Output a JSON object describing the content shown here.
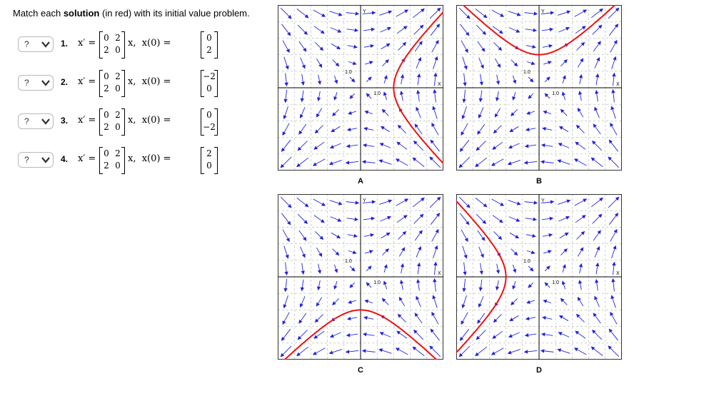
{
  "instruction": {
    "prefix": "Match each ",
    "bold": "solution",
    "suffix": " (in red) with its initial value problem."
  },
  "problems": [
    {
      "select_value": "?",
      "number": "1.",
      "lhs": "x′ =",
      "A": [
        "0",
        "2",
        "2",
        "0"
      ],
      "rhs": "x,  x(0) =",
      "x0": [
        "0",
        "2"
      ]
    },
    {
      "select_value": "?",
      "number": "2.",
      "lhs": "x′ =",
      "A": [
        "0",
        "2",
        "2",
        "0"
      ],
      "rhs": "x,  x(0) =",
      "x0": [
        "−2",
        "0"
      ]
    },
    {
      "select_value": "?",
      "number": "3.",
      "lhs": "x′ =",
      "A": [
        "0",
        "2",
        "2",
        "0"
      ],
      "rhs": "x,  x(0) =",
      "x0": [
        "0",
        "−2"
      ]
    },
    {
      "select_value": "?",
      "number": "4.",
      "lhs": "x′ =",
      "A": [
        "0",
        "2",
        "2",
        "0"
      ],
      "rhs": "x,  x(0) =",
      "x0": [
        "2",
        "0"
      ]
    }
  ],
  "plots": [
    {
      "label": "A",
      "y_axis_label": "Y",
      "x_axis_label": "X",
      "tick_y": "1.0",
      "tick_x": "1.0",
      "x0": [
        2,
        0
      ]
    },
    {
      "label": "B",
      "y_axis_label": "Y",
      "x_axis_label": "X",
      "tick_y": "1.0",
      "tick_x": "1.0",
      "x0": [
        0,
        2
      ]
    },
    {
      "label": "C",
      "y_axis_label": "Y",
      "x_axis_label": "X",
      "tick_y": "1.0",
      "tick_x": "1.0",
      "x0": [
        0,
        -2
      ]
    },
    {
      "label": "D",
      "y_axis_label": "Y",
      "x_axis_label": "X",
      "tick_y": "1.0",
      "tick_x": "1.0",
      "x0": [
        -2,
        0
      ]
    }
  ],
  "colors": {
    "arrows": "#2222dd",
    "solution": "#ee1111",
    "grid": "#b0b0b0"
  },
  "axis_range": [
    -5,
    5
  ]
}
